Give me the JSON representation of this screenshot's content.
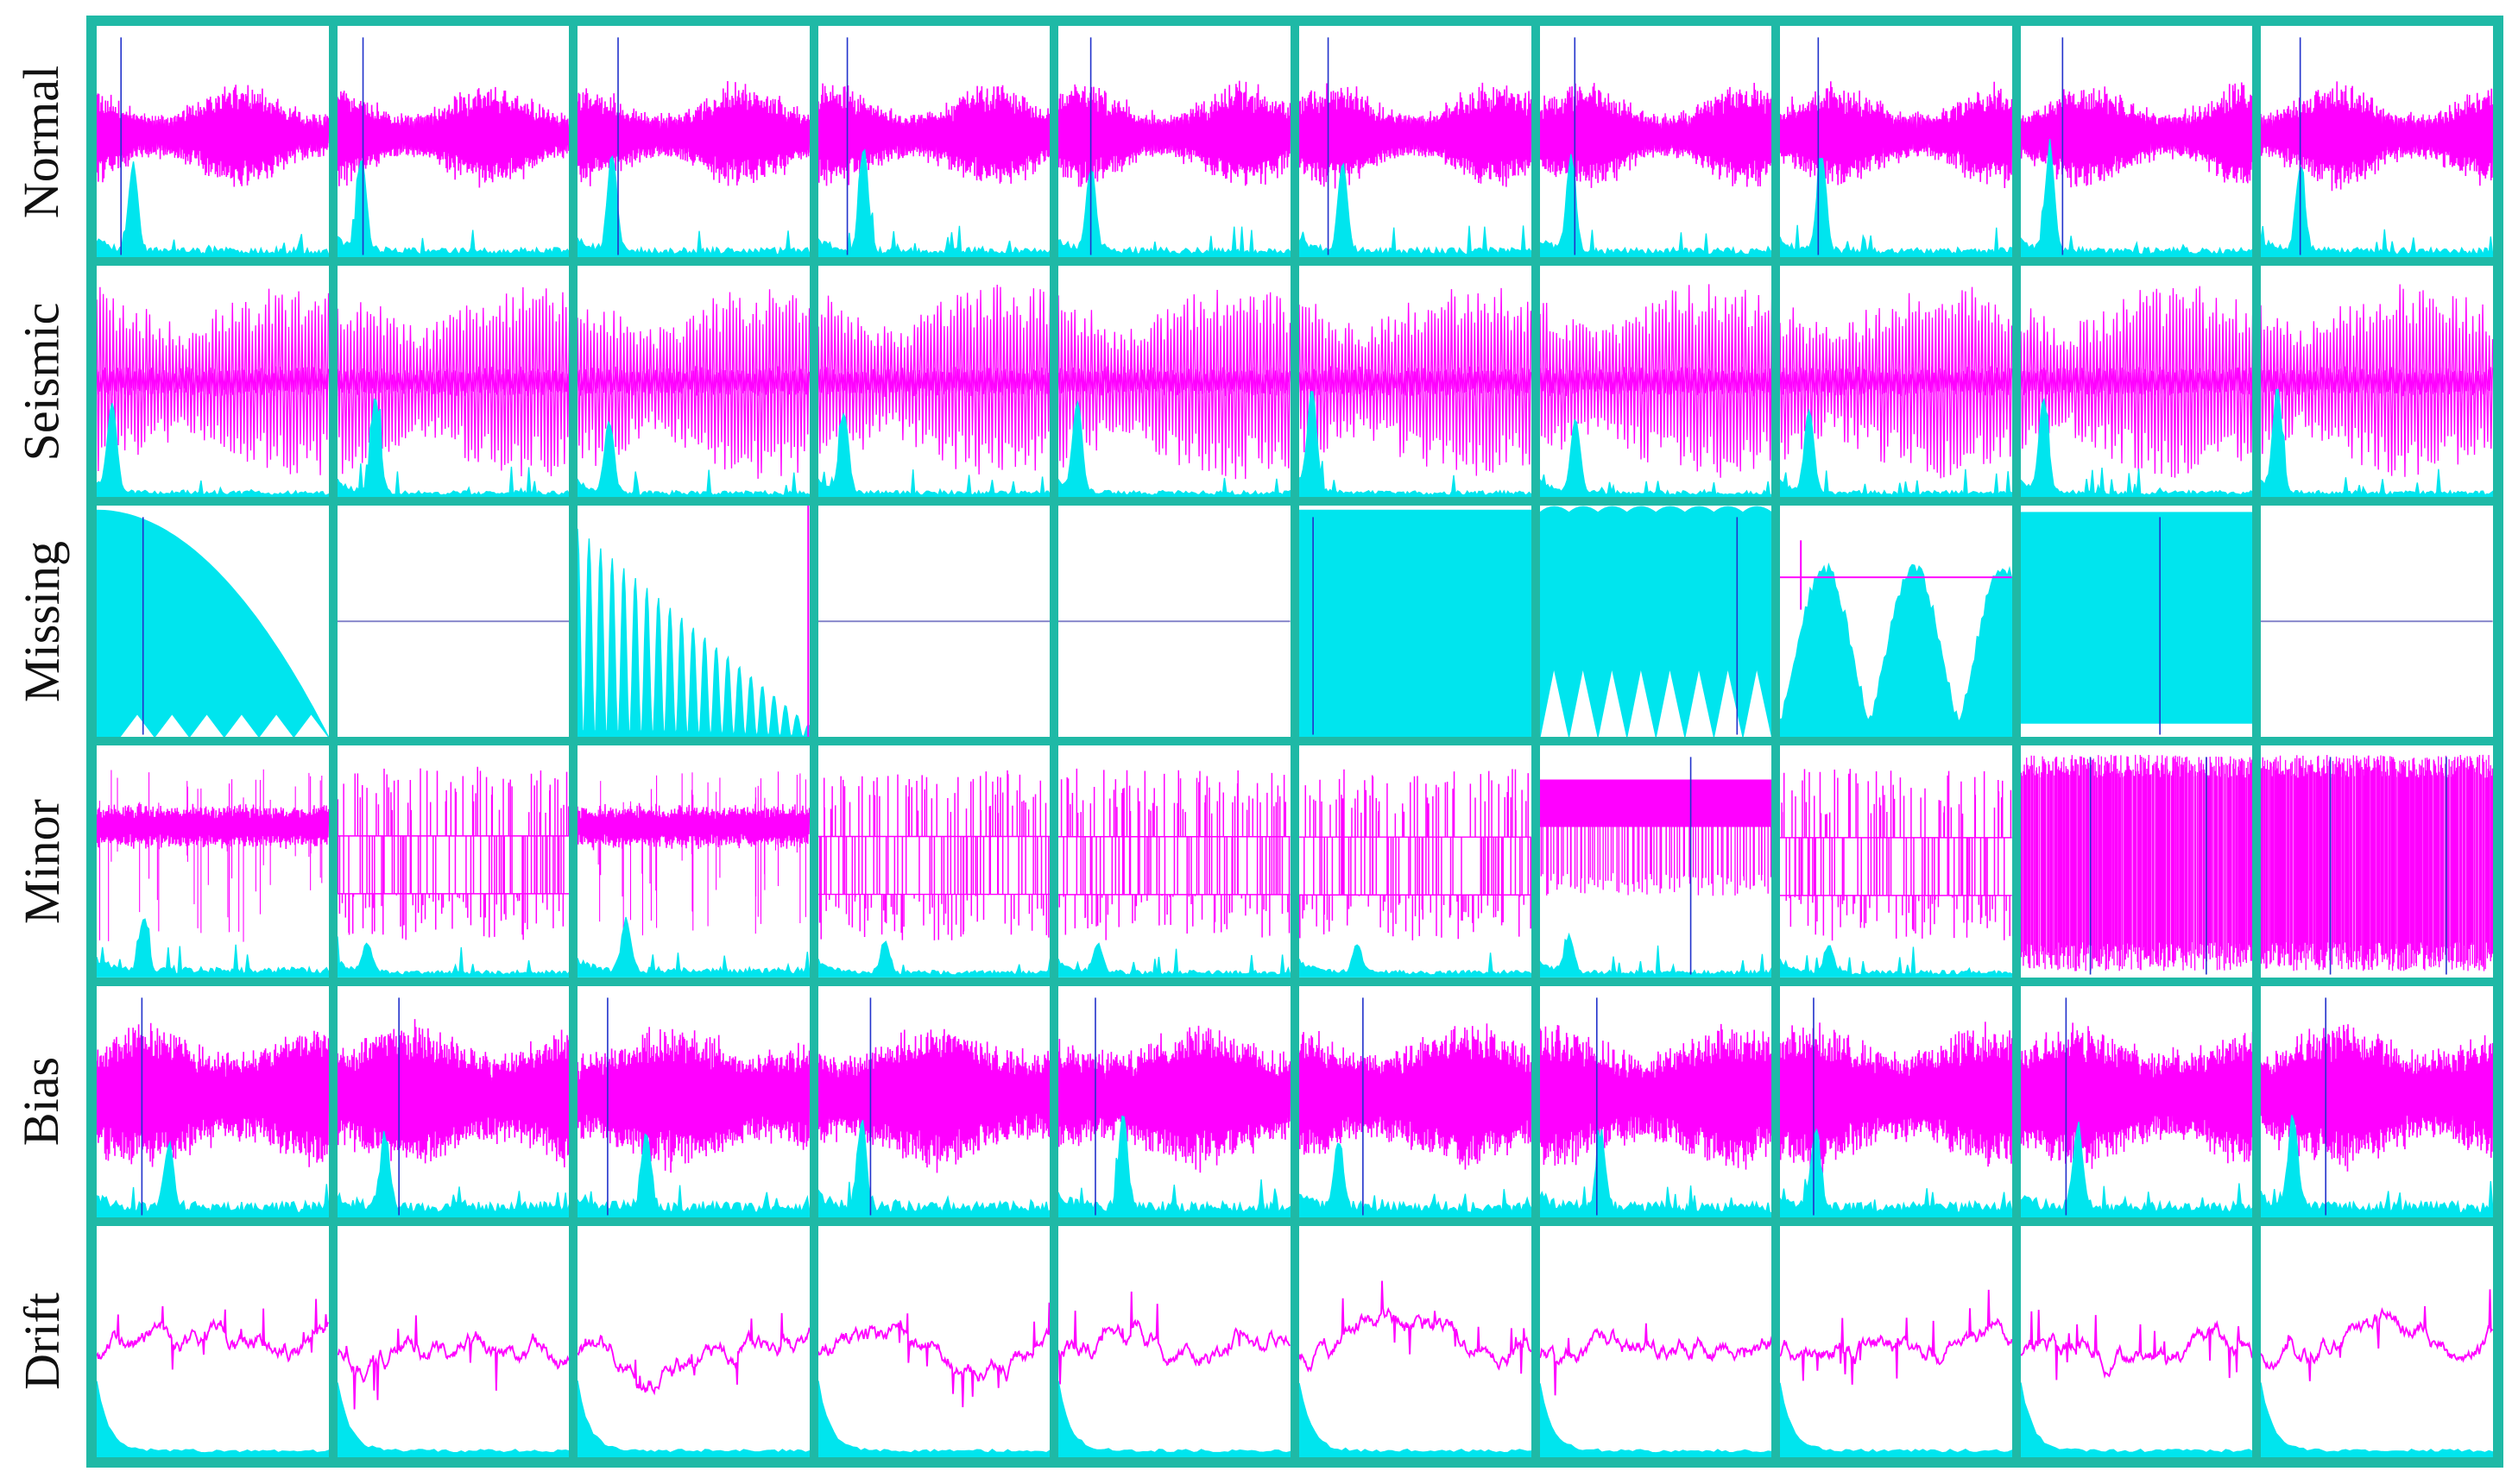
{
  "figure": {
    "row_labels": [
      "Normal",
      "Seismic",
      "Missing",
      "Minor",
      "Bias",
      "Drift"
    ],
    "columns": 10
  },
  "colors": {
    "frame": "#1fb9a6",
    "time_series": "#ff00ff",
    "spectrum": "#00e5ee",
    "marker_line": "#2233cc",
    "background": "#ffffff"
  },
  "legend_semantics": {
    "magenta": "time-domain acceleration trace",
    "cyan": "frequency spectrum"
  },
  "panels": [
    [
      "normal",
      "normal",
      "normal",
      "normal",
      "normal",
      "normal",
      "normal",
      "normal",
      "normal",
      "normal"
    ],
    [
      "seismic",
      "seismic",
      "seismic",
      "seismic",
      "seismic",
      "seismic",
      "seismic",
      "seismic",
      "seismic",
      "seismic"
    ],
    [
      "missing-ramp",
      "missing-flat",
      "missing-decay",
      "missing-flat",
      "missing-flat",
      "missing-full",
      "missing-triangles",
      "missing-hump",
      "missing-square",
      "missing-flat"
    ],
    [
      "minor-noise",
      "minor-square",
      "minor-noise",
      "minor-square",
      "minor-square",
      "minor-square",
      "minor-block",
      "minor-square",
      "minor-full",
      "minor-full"
    ],
    [
      "bias",
      "bias",
      "bias",
      "bias",
      "bias",
      "bias",
      "bias",
      "bias",
      "bias",
      "bias"
    ],
    [
      "drift",
      "drift",
      "drift",
      "drift",
      "drift",
      "drift",
      "drift",
      "drift",
      "drift",
      "drift"
    ]
  ]
}
